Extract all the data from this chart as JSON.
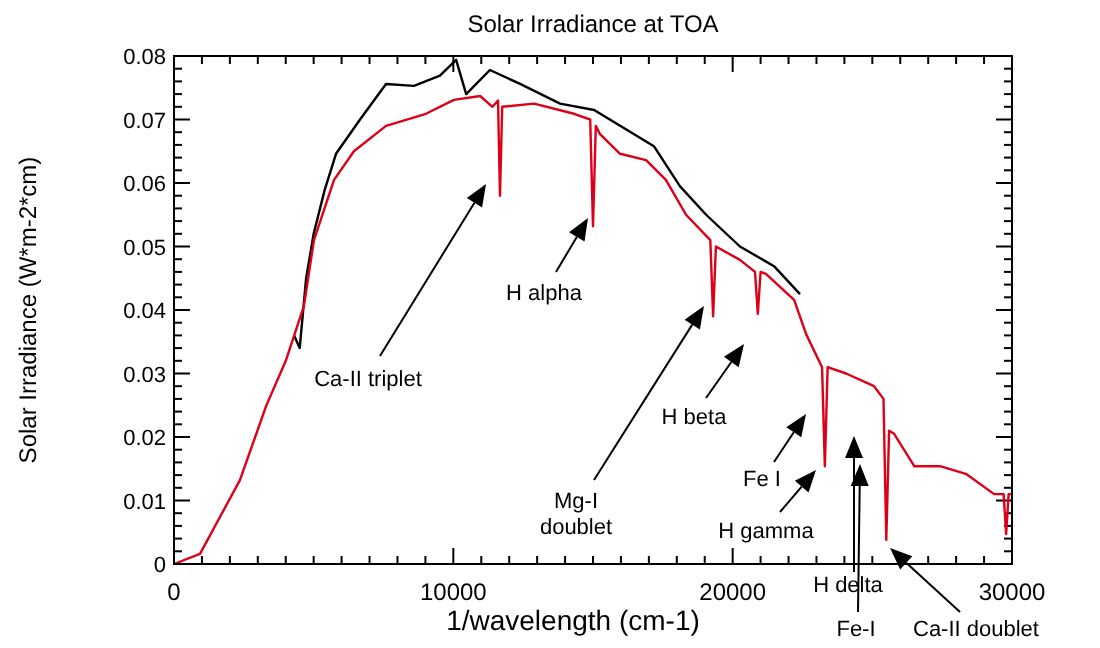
{
  "chart_data": {
    "type": "line",
    "title": "Solar Irradiance at TOA",
    "xlabel": "1/wavelength (cm-1)",
    "ylabel": "Solar Irradiance (W*m-2*cm)",
    "xlim": [
      0,
      30000
    ],
    "ylim": [
      0,
      0.08
    ],
    "xticks": [
      0,
      {
        "value": 1000,
        "label": null
      },
      {
        "value": 2000,
        "label": null
      },
      {
        "value": 3000,
        "label": null
      },
      {
        "value": 4000,
        "label": null
      },
      {
        "value": 5000,
        "label": null
      },
      {
        "value": 6000,
        "label": null
      },
      {
        "value": 7000,
        "label": null
      },
      {
        "value": 8000,
        "label": null
      },
      {
        "value": 9000,
        "label": null
      },
      10000,
      {
        "value": 11000,
        "label": null
      },
      {
        "value": 12000,
        "label": null
      },
      {
        "value": 13000,
        "label": null
      },
      {
        "value": 14000,
        "label": null
      },
      {
        "value": 15000,
        "label": null
      },
      {
        "value": 16000,
        "label": null
      },
      {
        "value": 17000,
        "label": null
      },
      {
        "value": 18000,
        "label": null
      },
      {
        "value": 19000,
        "label": null
      },
      20000,
      {
        "value": 21000,
        "label": null
      },
      {
        "value": 22000,
        "label": null
      },
      {
        "value": 23000,
        "label": null
      },
      {
        "value": 24000,
        "label": null
      },
      {
        "value": 25000,
        "label": null
      },
      {
        "value": 26000,
        "label": null
      },
      {
        "value": 27000,
        "label": null
      },
      {
        "value": 28000,
        "label": null
      },
      {
        "value": 29000,
        "label": null
      },
      30000
    ],
    "yticks": [
      0,
      {
        "value": 0.002,
        "label": null
      },
      {
        "value": 0.004,
        "label": null
      },
      {
        "value": 0.006,
        "label": null
      },
      {
        "value": 0.008,
        "label": null
      },
      0.01,
      {
        "value": 0.012,
        "label": null
      },
      {
        "value": 0.014,
        "label": null
      },
      {
        "value": 0.016,
        "label": null
      },
      {
        "value": 0.018,
        "label": null
      },
      0.02,
      {
        "value": 0.022,
        "label": null
      },
      {
        "value": 0.024,
        "label": null
      },
      {
        "value": 0.026,
        "label": null
      },
      {
        "value": 0.028,
        "label": null
      },
      0.03,
      {
        "value": 0.032,
        "label": null
      },
      {
        "value": 0.034,
        "label": null
      },
      {
        "value": 0.036,
        "label": null
      },
      {
        "value": 0.038,
        "label": null
      },
      0.04,
      {
        "value": 0.042,
        "label": null
      },
      {
        "value": 0.044,
        "label": null
      },
      {
        "value": 0.046,
        "label": null
      },
      {
        "value": 0.048,
        "label": null
      },
      0.05,
      {
        "value": 0.052,
        "label": null
      },
      {
        "value": 0.054,
        "label": null
      },
      {
        "value": 0.056,
        "label": null
      },
      {
        "value": 0.058,
        "label": null
      },
      0.06,
      {
        "value": 0.062,
        "label": null
      },
      {
        "value": 0.064,
        "label": null
      },
      {
        "value": 0.066,
        "label": null
      },
      {
        "value": 0.068,
        "label": null
      },
      0.07,
      {
        "value": 0.072,
        "label": null
      },
      {
        "value": 0.074,
        "label": null
      },
      {
        "value": 0.076,
        "label": null
      },
      {
        "value": 0.078,
        "label": null
      },
      0.08
    ],
    "series": [
      {
        "color": "#000000",
        "x": [
          4300,
          4500,
          4730,
          5000,
          5400,
          5800,
          6660,
          7590,
          8590,
          9520,
          10100,
          10460,
          11310,
          12390,
          13820,
          15040,
          15970,
          17180,
          18110,
          19050,
          20260,
          21480,
          22410
        ],
        "values": [
          0.036,
          0.034,
          0.045,
          0.052,
          0.059,
          0.0646,
          0.07,
          0.0756,
          0.0753,
          0.0769,
          0.0794,
          0.074,
          0.0778,
          0.0756,
          0.0725,
          0.0715,
          0.069,
          0.0658,
          0.0595,
          0.055,
          0.05,
          0.0469,
          0.0425
        ]
      },
      {
        "color": "#dd0018",
        "x": [
          0,
          930,
          2360,
          3300,
          4010,
          4650,
          5010,
          5730,
          6440,
          7590,
          9020,
          10020,
          10960,
          11400,
          11600,
          11670,
          11750,
          12890,
          14320,
          14900,
          15000,
          15100,
          15250,
          15970,
          16900,
          17610,
          18330,
          19200,
          19300,
          19400,
          20260,
          20800,
          20900,
          21000,
          21190,
          22200,
          22630,
          23200,
          23300,
          23400,
          24060,
          25060,
          25400,
          25500,
          25600,
          25780,
          26500,
          27420,
          28350,
          29360,
          29700,
          29790,
          29880,
          30000
        ],
        "values": [
          0,
          0.0016,
          0.0132,
          0.0249,
          0.0321,
          0.0406,
          0.051,
          0.0605,
          0.065,
          0.069,
          0.0709,
          0.0731,
          0.0737,
          0.072,
          0.073,
          0.058,
          0.072,
          0.0725,
          0.0709,
          0.07,
          0.0532,
          0.069,
          0.0677,
          0.0646,
          0.0636,
          0.0605,
          0.055,
          0.051,
          0.039,
          0.05,
          0.0479,
          0.046,
          0.0394,
          0.046,
          0.0457,
          0.0416,
          0.0362,
          0.031,
          0.0154,
          0.031,
          0.03,
          0.028,
          0.026,
          0.0038,
          0.021,
          0.0205,
          0.0154,
          0.0154,
          0.0142,
          0.011,
          0.011,
          0.0047,
          0.011,
          0.011
        ]
      }
    ],
    "annotations": [
      "Ca-II triplet",
      "H alpha",
      "Mg-I\ndoublet",
      "H beta",
      "Fe I",
      "H gamma",
      "H delta",
      "Fe-I",
      "Ca-II doublet"
    ]
  }
}
